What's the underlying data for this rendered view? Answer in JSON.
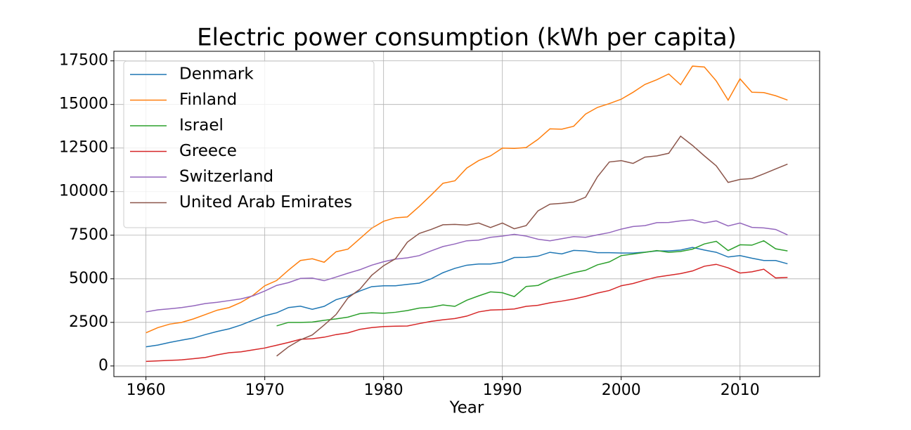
{
  "chart_data": {
    "type": "line",
    "title": "Electric power consumption (kWh per capita)",
    "x_label": "Year",
    "x": [
      1960,
      1961,
      1962,
      1963,
      1964,
      1965,
      1966,
      1967,
      1968,
      1969,
      1970,
      1971,
      1972,
      1973,
      1974,
      1975,
      1976,
      1977,
      1978,
      1979,
      1980,
      1981,
      1982,
      1983,
      1984,
      1985,
      1986,
      1987,
      1988,
      1989,
      1990,
      1991,
      1992,
      1993,
      1994,
      1995,
      1996,
      1997,
      1998,
      1999,
      2000,
      2001,
      2002,
      2003,
      2004,
      2005,
      2006,
      2007,
      2008,
      2009,
      2010,
      2011,
      2012,
      2013,
      2014
    ],
    "series": [
      {
        "name": "Denmark",
        "color": "#1f77b4",
        "values": [
          1100,
          1200,
          1350,
          1480,
          1600,
          1800,
          1980,
          2130,
          2350,
          2620,
          2880,
          3050,
          3350,
          3430,
          3250,
          3420,
          3800,
          4000,
          4300,
          4550,
          4600,
          4600,
          4680,
          4750,
          5000,
          5350,
          5600,
          5780,
          5850,
          5850,
          5950,
          6220,
          6230,
          6300,
          6520,
          6430,
          6630,
          6600,
          6500,
          6500,
          6480,
          6480,
          6530,
          6600,
          6600,
          6650,
          6800,
          6650,
          6520,
          6250,
          6330,
          6180,
          6050,
          6050,
          5860
        ]
      },
      {
        "name": "Finland",
        "color": "#ff7f0e",
        "values": [
          1900,
          2200,
          2400,
          2500,
          2700,
          2950,
          3200,
          3350,
          3650,
          4050,
          4600,
          4900,
          5500,
          6050,
          6150,
          5950,
          6550,
          6700,
          7300,
          7900,
          8300,
          8500,
          8550,
          9150,
          9800,
          10480,
          10620,
          11350,
          11780,
          12050,
          12500,
          12480,
          12530,
          13000,
          13600,
          13580,
          13750,
          14450,
          14830,
          15050,
          15300,
          15700,
          16150,
          16420,
          16750,
          16130,
          17200,
          17150,
          16350,
          15250,
          16470,
          15700,
          15680,
          15500,
          15250
        ]
      },
      {
        "name": "Israel",
        "color": "#2ca02c",
        "values": [
          null,
          null,
          null,
          null,
          null,
          null,
          null,
          null,
          null,
          null,
          null,
          2300,
          2500,
          2500,
          2520,
          2620,
          2700,
          2800,
          3000,
          3050,
          3020,
          3080,
          3180,
          3320,
          3370,
          3500,
          3420,
          3770,
          4020,
          4250,
          4200,
          3980,
          4560,
          4620,
          4950,
          5150,
          5350,
          5490,
          5800,
          5970,
          6330,
          6420,
          6520,
          6620,
          6520,
          6570,
          6700,
          7000,
          7150,
          6620,
          6950,
          6930,
          7180,
          6720,
          6600
        ]
      },
      {
        "name": "Greece",
        "color": "#d62728",
        "values": [
          260,
          290,
          320,
          350,
          420,
          490,
          640,
          760,
          810,
          920,
          1030,
          1190,
          1350,
          1530,
          1560,
          1650,
          1800,
          1900,
          2100,
          2200,
          2260,
          2280,
          2290,
          2430,
          2560,
          2650,
          2720,
          2860,
          3100,
          3210,
          3230,
          3270,
          3420,
          3480,
          3620,
          3720,
          3840,
          3990,
          4180,
          4330,
          4600,
          4730,
          4930,
          5100,
          5200,
          5300,
          5450,
          5720,
          5830,
          5630,
          5330,
          5400,
          5550,
          5050,
          5080
        ]
      },
      {
        "name": "Switzerland",
        "color": "#9467bd",
        "values": [
          3100,
          3220,
          3280,
          3350,
          3450,
          3580,
          3650,
          3750,
          3850,
          4020,
          4300,
          4620,
          4780,
          5020,
          5040,
          4890,
          5100,
          5320,
          5520,
          5780,
          5980,
          6130,
          6200,
          6330,
          6600,
          6850,
          7000,
          7180,
          7220,
          7380,
          7450,
          7550,
          7450,
          7270,
          7180,
          7300,
          7420,
          7380,
          7520,
          7650,
          7850,
          8000,
          8050,
          8220,
          8230,
          8320,
          8380,
          8200,
          8320,
          8030,
          8200,
          7950,
          7920,
          7830,
          7520
        ]
      },
      {
        "name": "United Arab Emirates",
        "color": "#8c564b",
        "values": [
          null,
          null,
          null,
          null,
          null,
          null,
          null,
          null,
          null,
          null,
          null,
          570,
          1100,
          1500,
          1780,
          2350,
          2950,
          3900,
          4400,
          5200,
          5750,
          6150,
          7100,
          7600,
          7830,
          8100,
          8120,
          8080,
          8200,
          7940,
          8200,
          7870,
          8050,
          8900,
          9280,
          9330,
          9400,
          9680,
          10850,
          11700,
          11780,
          11620,
          11980,
          12050,
          12200,
          13180,
          12650,
          12050,
          11480,
          10530,
          10700,
          10750,
          11020,
          11300,
          11580
        ]
      }
    ],
    "xlim": [
      1957.3,
      2016.7
    ],
    "xticks": [
      1960,
      1970,
      1980,
      1990,
      2000,
      2010
    ],
    "ylim": [
      -610,
      18050
    ],
    "yticks": [
      0,
      2500,
      5000,
      7500,
      10000,
      12500,
      15000,
      17500
    ],
    "grid": true,
    "legend": "upper-left"
  }
}
